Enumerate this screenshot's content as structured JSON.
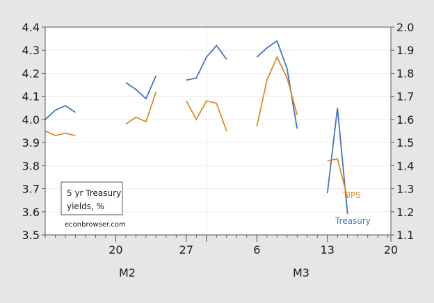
{
  "chart_data": {
    "type": "line",
    "title": "",
    "annotation_box": "5 yr Treasury yields, %",
    "source": "econbrowser.com",
    "xlabel": "",
    "x_tick_labels": [
      "20",
      "27",
      "6",
      "13",
      "20"
    ],
    "x_month_labels": [
      "M2",
      "M3"
    ],
    "x": [
      "Feb 13",
      "Feb 14",
      "Feb 15",
      "Feb 16",
      "Feb 21",
      "Feb 22",
      "Feb 23",
      "Feb 24",
      "Feb 27",
      "Feb 28",
      "Mar 1",
      "Mar 2",
      "Mar 3",
      "Mar 6",
      "Mar 7",
      "Mar 8",
      "Mar 9",
      "Mar 10",
      "Mar 13",
      "Mar 14",
      "Mar 15"
    ],
    "y_left": {
      "ylim": [
        3.5,
        4.4
      ],
      "ticks": [
        "3.5",
        "3.6",
        "3.7",
        "3.8",
        "3.9",
        "4.0",
        "4.1",
        "4.2",
        "4.3",
        "4.4"
      ]
    },
    "y_right": {
      "ylim": [
        1.1,
        2.0
      ],
      "ticks": [
        "1.1",
        "1.2",
        "1.3",
        "1.4",
        "1.5",
        "1.6",
        "1.7",
        "1.8",
        "1.9",
        "2.0"
      ]
    },
    "grid": true,
    "series": [
      {
        "name": "Treasury",
        "axis": "left",
        "color": "#4472c4",
        "segments": [
          [
            4.0,
            4.04,
            4.06,
            4.03
          ],
          [
            4.16,
            4.13,
            4.09,
            4.19
          ],
          [
            4.17,
            4.18,
            4.27,
            4.32,
            4.26
          ],
          [
            4.27,
            4.31,
            4.34,
            4.22,
            3.96
          ],
          [
            3.68,
            4.05,
            3.59
          ]
        ]
      },
      {
        "name": "TIPS",
        "axis": "right",
        "color": "#e08a1e",
        "segments": [
          [
            1.55,
            1.53,
            1.54,
            1.53
          ],
          [
            1.58,
            1.61,
            1.59,
            1.72
          ],
          [
            1.68,
            1.6,
            1.68,
            1.67,
            1.55
          ],
          [
            1.57,
            1.77,
            1.87,
            1.78,
            1.62
          ],
          [
            1.42,
            1.43,
            1.26
          ]
        ]
      }
    ],
    "legend": {
      "position": "inline-right",
      "entries": [
        "TIPS",
        "Treasury"
      ]
    }
  },
  "labels": {
    "note_line1": "5 yr Treasury",
    "note_line2": "yields, %",
    "source": "econbrowser.com",
    "tips": "TIPS",
    "treasury": "Treasury"
  }
}
